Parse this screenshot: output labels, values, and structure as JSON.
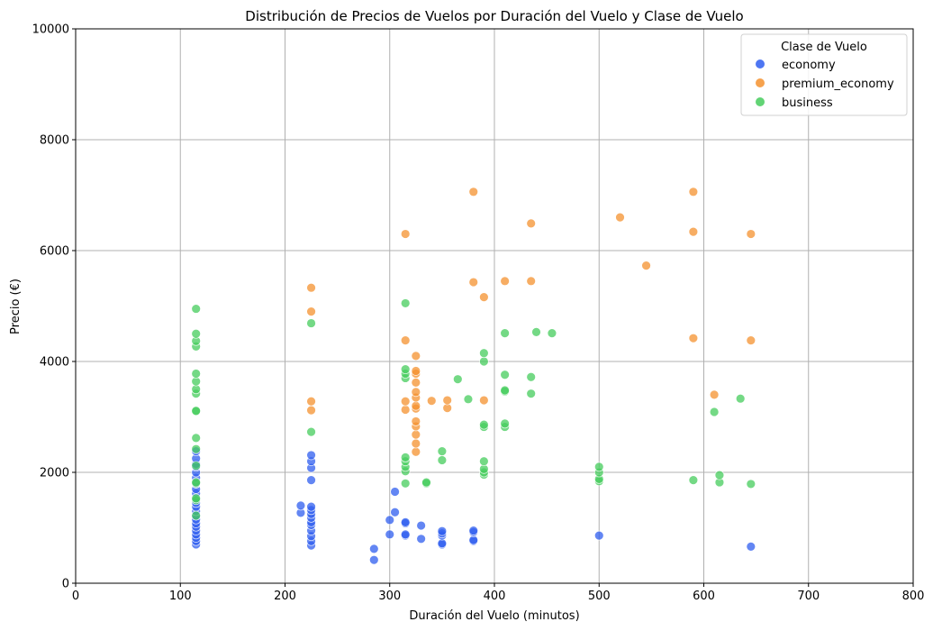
{
  "chart_data": {
    "type": "scatter",
    "title": "Distribución de Precios de Vuelos por Duración del Vuelo y Clase de Vuelo",
    "xlabel": "Duración del Vuelo (minutos)",
    "ylabel": "Precio (€)",
    "xlim": [
      0,
      800
    ],
    "ylim": [
      0,
      10000
    ],
    "xticks": [
      "0",
      "100",
      "200",
      "300",
      "400",
      "500",
      "600",
      "700",
      "800"
    ],
    "yticks": [
      "0",
      "2000",
      "4000",
      "6000",
      "8000",
      "10000"
    ],
    "grid": true,
    "legend": {
      "title": "Clase de Vuelo",
      "placement": "top-right"
    },
    "series": [
      {
        "name": "economy",
        "color": "#2f5ef0",
        "points": [
          [
            115,
            700
          ],
          [
            115,
            760
          ],
          [
            115,
            820
          ],
          [
            115,
            880
          ],
          [
            115,
            950
          ],
          [
            115,
            1020
          ],
          [
            115,
            1080
          ],
          [
            115,
            1150
          ],
          [
            115,
            1220
          ],
          [
            115,
            1300
          ],
          [
            115,
            1380
          ],
          [
            115,
            1450
          ],
          [
            115,
            1530
          ],
          [
            115,
            1620
          ],
          [
            115,
            1700
          ],
          [
            115,
            1800
          ],
          [
            115,
            1900
          ],
          [
            115,
            2000
          ],
          [
            115,
            2100
          ],
          [
            115,
            2150
          ],
          [
            115,
            2250
          ],
          [
            115,
            2380
          ],
          [
            215,
            1270
          ],
          [
            215,
            1400
          ],
          [
            225,
            680
          ],
          [
            225,
            760
          ],
          [
            225,
            850
          ],
          [
            225,
            950
          ],
          [
            225,
            1050
          ],
          [
            225,
            1100
          ],
          [
            225,
            1180
          ],
          [
            225,
            1250
          ],
          [
            225,
            1320
          ],
          [
            225,
            1380
          ],
          [
            225,
            1860
          ],
          [
            225,
            2080
          ],
          [
            225,
            2200
          ],
          [
            225,
            2310
          ],
          [
            285,
            420
          ],
          [
            285,
            620
          ],
          [
            300,
            880
          ],
          [
            300,
            1140
          ],
          [
            305,
            1280
          ],
          [
            305,
            1650
          ],
          [
            315,
            860
          ],
          [
            315,
            880
          ],
          [
            315,
            1080
          ],
          [
            315,
            1100
          ],
          [
            330,
            800
          ],
          [
            330,
            1040
          ],
          [
            350,
            700
          ],
          [
            350,
            720
          ],
          [
            350,
            860
          ],
          [
            350,
            900
          ],
          [
            350,
            940
          ],
          [
            380,
            760
          ],
          [
            380,
            780
          ],
          [
            380,
            920
          ],
          [
            380,
            950
          ],
          [
            500,
            860
          ],
          [
            645,
            660
          ]
        ]
      },
      {
        "name": "premium_economy",
        "color": "#f5922f",
        "points": [
          [
            225,
            3120
          ],
          [
            225,
            3280
          ],
          [
            225,
            4900
          ],
          [
            225,
            5330
          ],
          [
            315,
            3130
          ],
          [
            315,
            3280
          ],
          [
            315,
            4380
          ],
          [
            315,
            6300
          ],
          [
            325,
            2370
          ],
          [
            325,
            2520
          ],
          [
            325,
            2680
          ],
          [
            325,
            2830
          ],
          [
            325,
            2920
          ],
          [
            325,
            3150
          ],
          [
            325,
            3200
          ],
          [
            325,
            3350
          ],
          [
            325,
            3450
          ],
          [
            325,
            3620
          ],
          [
            325,
            3780
          ],
          [
            325,
            3830
          ],
          [
            325,
            4100
          ],
          [
            340,
            3290
          ],
          [
            355,
            3160
          ],
          [
            355,
            3300
          ],
          [
            380,
            5430
          ],
          [
            380,
            7060
          ],
          [
            390,
            3300
          ],
          [
            390,
            5160
          ],
          [
            410,
            5450
          ],
          [
            435,
            5450
          ],
          [
            435,
            6490
          ],
          [
            520,
            6600
          ],
          [
            545,
            5730
          ],
          [
            590,
            4420
          ],
          [
            590,
            6340
          ],
          [
            590,
            7060
          ],
          [
            610,
            3400
          ],
          [
            645,
            4380
          ],
          [
            645,
            6300
          ]
        ]
      },
      {
        "name": "business",
        "color": "#46cd5d",
        "points": [
          [
            115,
            1220
          ],
          [
            115,
            1500
          ],
          [
            115,
            1530
          ],
          [
            115,
            1800
          ],
          [
            115,
            1820
          ],
          [
            115,
            2120
          ],
          [
            115,
            2420
          ],
          [
            115,
            2620
          ],
          [
            115,
            3100
          ],
          [
            115,
            3110
          ],
          [
            115,
            3420
          ],
          [
            115,
            3500
          ],
          [
            115,
            3640
          ],
          [
            115,
            3780
          ],
          [
            115,
            4270
          ],
          [
            115,
            4370
          ],
          [
            115,
            4500
          ],
          [
            115,
            4950
          ],
          [
            225,
            2730
          ],
          [
            225,
            4690
          ],
          [
            315,
            1800
          ],
          [
            315,
            2020
          ],
          [
            315,
            2100
          ],
          [
            315,
            2200
          ],
          [
            315,
            2270
          ],
          [
            315,
            3700
          ],
          [
            315,
            3780
          ],
          [
            315,
            3860
          ],
          [
            315,
            5050
          ],
          [
            335,
            1800
          ],
          [
            335,
            1820
          ],
          [
            350,
            2220
          ],
          [
            350,
            2380
          ],
          [
            365,
            3680
          ],
          [
            375,
            3320
          ],
          [
            390,
            1960
          ],
          [
            390,
            2000
          ],
          [
            390,
            2060
          ],
          [
            390,
            2200
          ],
          [
            390,
            2820
          ],
          [
            390,
            2860
          ],
          [
            390,
            4000
          ],
          [
            390,
            4150
          ],
          [
            410,
            2820
          ],
          [
            410,
            2880
          ],
          [
            410,
            3460
          ],
          [
            410,
            3480
          ],
          [
            410,
            3760
          ],
          [
            410,
            4510
          ],
          [
            435,
            3420
          ],
          [
            435,
            3720
          ],
          [
            440,
            4530
          ],
          [
            455,
            4510
          ],
          [
            500,
            1840
          ],
          [
            500,
            1880
          ],
          [
            500,
            2000
          ],
          [
            500,
            2100
          ],
          [
            590,
            1860
          ],
          [
            610,
            3090
          ],
          [
            615,
            1820
          ],
          [
            615,
            1950
          ],
          [
            635,
            3330
          ],
          [
            645,
            1790
          ]
        ]
      }
    ]
  }
}
